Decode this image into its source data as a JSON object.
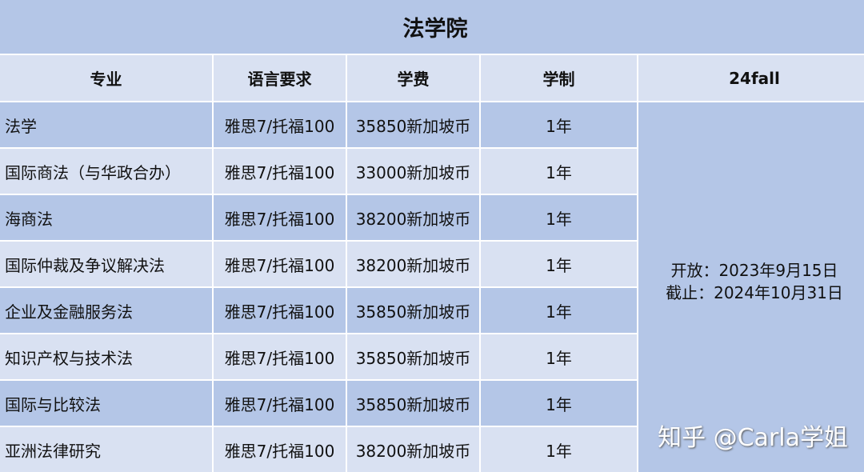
{
  "title": "法学院",
  "headers": [
    "专业",
    "语言要求",
    "学费",
    "学制",
    "24fall"
  ],
  "rows": [
    {
      "major": "法学",
      "language": "雅思7/托福100",
      "tuition": "35850新加坡币",
      "duration": "1年"
    },
    {
      "major": "国际商法（与华政合办）",
      "language": "雅思7/托福100",
      "tuition": "33000新加坡币",
      "duration": "1年"
    },
    {
      "major": "海商法",
      "language": "雅思7/托福100",
      "tuition": "38200新加坡币",
      "duration": "1年"
    },
    {
      "major": "国际仲裁及争议解决法",
      "language": "雅思7/托福100",
      "tuition": "38200新加坡币",
      "duration": "1年"
    },
    {
      "major": "企业及金融服务法",
      "language": "雅思7/托福100",
      "tuition": "35850新加坡币",
      "duration": "1年"
    },
    {
      "major": "知识产权与技术法",
      "language": "雅思7/托福100",
      "tuition": "35850新加坡币",
      "duration": "1年"
    },
    {
      "major": "国际与比较法",
      "language": "雅思7/托福100",
      "tuition": "35850新加坡币",
      "duration": "1年"
    },
    {
      "major": "亚洲法律研究",
      "language": "雅思7/托福100",
      "tuition": "38200新加坡币",
      "duration": "1年"
    }
  ],
  "application": {
    "open": "开放：2023年9月15日",
    "deadline": "截止：2024年10月31日"
  },
  "watermark": "知乎 @Carla学姐",
  "colors": {
    "dark": "#b4c6e7",
    "light": "#d9e1f2"
  }
}
